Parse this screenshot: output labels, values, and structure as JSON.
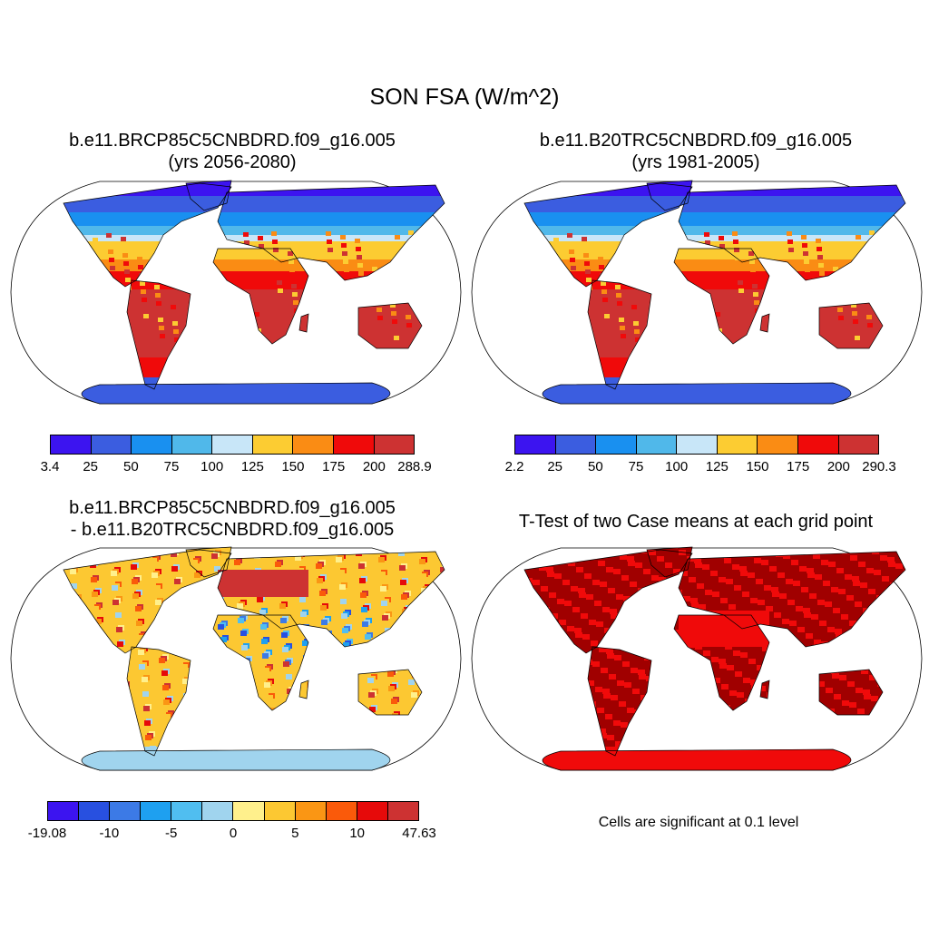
{
  "figure": {
    "title": "SON FSA (W/m^2)"
  },
  "panels": {
    "top_left": {
      "title_line1": "b.e11.BRCP85C5CNBDRD.f09_g16.005",
      "title_line2": "(yrs 2056-2080)",
      "colorbar": {
        "colors": [
          "#3c14f0",
          "#3b5de0",
          "#1990f0",
          "#50b8ea",
          "#c8e6f8",
          "#fccc32",
          "#fa8c14",
          "#f00a0a",
          "#cd3232"
        ],
        "labels": [
          "3.4",
          "25",
          "50",
          "75",
          "100",
          "125",
          "150",
          "175",
          "200",
          "288.9"
        ]
      }
    },
    "top_right": {
      "title_line1": "b.e11.B20TRC5CNBDRD.f09_g16.005",
      "title_line2": "(yrs 1981-2005)",
      "colorbar": {
        "colors": [
          "#3c14f0",
          "#3b5de0",
          "#1990f0",
          "#50b8ea",
          "#c8e6f8",
          "#fccc32",
          "#fa8c14",
          "#f00a0a",
          "#cd3232"
        ],
        "labels": [
          "2.2",
          "25",
          "50",
          "75",
          "100",
          "125",
          "150",
          "175",
          "200",
          "290.3"
        ]
      }
    },
    "bottom_left": {
      "title_line1": "b.e11.BRCP85C5CNBDRD.f09_g16.005",
      "title_line2": "- b.e11.B20TRC5CNBDRD.f09_g16.005",
      "colorbar": {
        "colors": [
          "#3c14f0",
          "#2850e0",
          "#3c7ae6",
          "#1ea0f0",
          "#50bef0",
          "#a0d4ee",
          "#fff08c",
          "#fcc832",
          "#fa9614",
          "#fa5a0a",
          "#e60a0a",
          "#cd3232"
        ],
        "labels": [
          "-19.08",
          "-10",
          "-5",
          "0",
          "5",
          "10",
          "47.63"
        ]
      }
    },
    "bottom_right": {
      "title_line1": "T-Test of two Case means at each grid point",
      "note": "Cells are significant at 0.1 level",
      "significant_color": "#f00a0a"
    }
  },
  "map_colors": {
    "ocean": "#ffffff",
    "polar": "#3b5de0",
    "arctic": "#3c14f0",
    "highlat": "#1990f0",
    "midlat": "#50b8ea",
    "lightlat": "#c8e6f8",
    "warm1": "#fccc32",
    "warm2": "#fa8c14",
    "hot": "#f00a0a",
    "hottest": "#cd3232"
  }
}
